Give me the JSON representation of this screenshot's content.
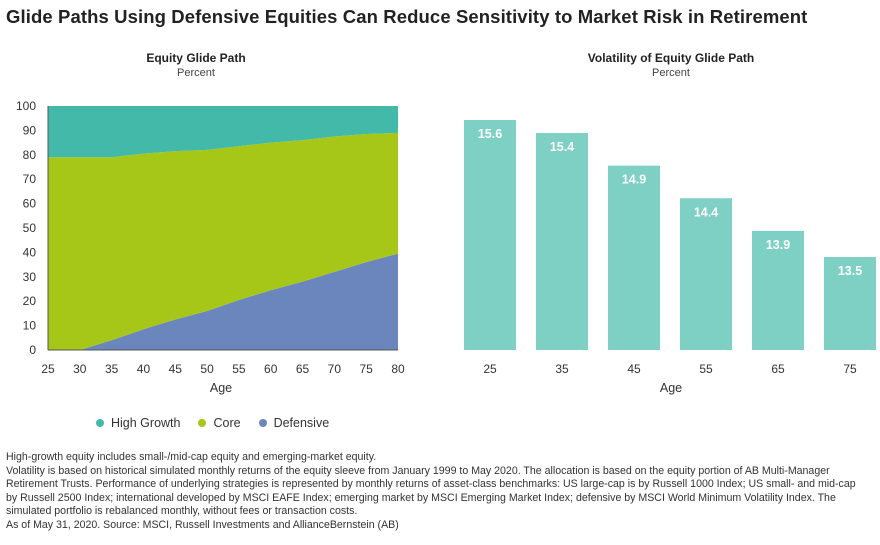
{
  "title": "Glide Paths Using Defensive Equities Can Reduce Sensitivity to Market Risk in Retirement",
  "colors": {
    "high_growth": "#43b9aa",
    "core": "#a6c718",
    "defensive": "#6b86bd",
    "bar": "#7ecfc4",
    "axis": "#555555"
  },
  "chart_data": [
    {
      "type": "area",
      "title": "Equity Glide Path",
      "subtitle": "Percent",
      "xlabel": "Age",
      "ylabel": "",
      "stacked": true,
      "x": [
        25,
        30,
        35,
        40,
        45,
        50,
        55,
        60,
        65,
        70,
        75,
        80
      ],
      "xlim": [
        25,
        80
      ],
      "ylim": [
        0,
        100
      ],
      "yticks": [
        0,
        10,
        20,
        30,
        40,
        50,
        60,
        70,
        80,
        90,
        100
      ],
      "series": [
        {
          "name": "Defensive",
          "values": [
            0,
            0,
            4,
            8.5,
            12.5,
            16,
            20.5,
            24.5,
            28,
            32,
            36,
            39.5
          ]
        },
        {
          "name": "Core",
          "values": [
            79,
            79,
            75,
            72,
            69,
            66,
            63,
            60.5,
            58,
            55.5,
            52.5,
            49.5
          ]
        },
        {
          "name": "High Growth",
          "values": [
            21,
            21,
            21,
            19.5,
            18.5,
            18,
            16.5,
            15,
            14,
            12.5,
            11.5,
            11
          ]
        }
      ],
      "legend": {
        "position": "bottom",
        "items": [
          "High Growth",
          "Core",
          "Defensive"
        ]
      },
      "grid": false
    },
    {
      "type": "bar",
      "title": "Volatility of Equity Glide Path",
      "subtitle": "Percent",
      "xlabel": "Age",
      "categories": [
        "25",
        "35",
        "45",
        "55",
        "65",
        "75"
      ],
      "values": [
        15.6,
        15.4,
        14.9,
        14.4,
        13.9,
        13.5
      ],
      "value_labels": [
        "15.6",
        "15.4",
        "14.9",
        "14.4",
        "13.9",
        "13.5"
      ],
      "grid": false
    }
  ],
  "footnotes": [
    "High-growth equity includes small-/mid-cap equity and emerging-market equity.",
    "Volatility is based on historical simulated monthly returns of the equity sleeve from January 1999 to May 2020. The allocation is based on the equity portion of AB Multi-Manager Retirement Trusts. Performance of underlying strategies is represented by monthly returns of asset-class benchmarks: US large-cap is by Russell 1000 Index; US small- and mid-cap by Russell 2500 Index; international developed by MSCI EAFE Index; emerging market by MSCI Emerging Market Index; defensive by MSCI World Minimum Volatility Index. The simulated portfolio is rebalanced monthly, without fees or transaction costs.",
    "As of May 31, 2020. Source: MSCI, Russell Investments and AllianceBernstein (AB)"
  ]
}
